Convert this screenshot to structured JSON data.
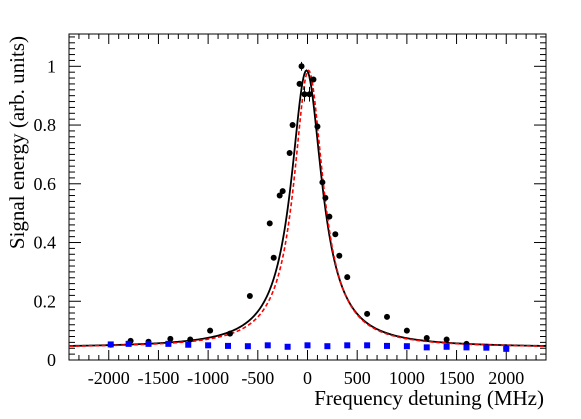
{
  "chart_data": {
    "type": "scatter",
    "title": "",
    "xlabel": "Frequency detuning (MHz)",
    "ylabel": "Signal energy (arb. units)",
    "xlim": [
      -2400,
      2400
    ],
    "ylim": [
      0,
      1.11
    ],
    "x_ticks": [
      -2000,
      -1500,
      -1000,
      -500,
      0,
      500,
      1000,
      1500,
      2000
    ],
    "y_ticks": [
      0,
      0.2,
      0.4,
      0.6,
      0.8,
      1
    ],
    "grid": false,
    "legend": "none",
    "series": [
      {
        "style": "black-points-with-error-bars",
        "color": "#000000",
        "points": [
          {
            "x": -1980,
            "y": 0.052
          },
          {
            "x": -1780,
            "y": 0.065
          },
          {
            "x": -1600,
            "y": 0.062
          },
          {
            "x": -1380,
            "y": 0.072
          },
          {
            "x": -1180,
            "y": 0.07
          },
          {
            "x": -980,
            "y": 0.1
          },
          {
            "x": -780,
            "y": 0.09
          },
          {
            "x": -580,
            "y": 0.218
          },
          {
            "x": -380,
            "y": 0.465
          },
          {
            "x": -340,
            "y": 0.348
          },
          {
            "x": -280,
            "y": 0.56
          },
          {
            "x": -250,
            "y": 0.575
          },
          {
            "x": -180,
            "y": 0.705
          },
          {
            "x": -150,
            "y": 0.8
          },
          {
            "x": -80,
            "y": 0.94
          },
          {
            "x": -60,
            "y": 1.0,
            "err": 0.015
          },
          {
            "x": -30,
            "y": 0.905,
            "err": 0.025
          },
          {
            "x": 20,
            "y": 0.905,
            "err": 0.025
          },
          {
            "x": 60,
            "y": 0.955
          },
          {
            "x": 100,
            "y": 0.795
          },
          {
            "x": 150,
            "y": 0.605
          },
          {
            "x": 180,
            "y": 0.552
          },
          {
            "x": 220,
            "y": 0.488
          },
          {
            "x": 280,
            "y": 0.428
          },
          {
            "x": 320,
            "y": 0.355
          },
          {
            "x": 400,
            "y": 0.282
          },
          {
            "x": 600,
            "y": 0.157
          },
          {
            "x": 800,
            "y": 0.147
          },
          {
            "x": 1000,
            "y": 0.1
          },
          {
            "x": 1200,
            "y": 0.075
          },
          {
            "x": 1400,
            "y": 0.07
          },
          {
            "x": 1600,
            "y": 0.055
          },
          {
            "x": 1800,
            "y": 0.045
          },
          {
            "x": 2000,
            "y": 0.04
          }
        ]
      },
      {
        "style": "blue-squares",
        "color": "#0000ff",
        "points": [
          {
            "x": -1980,
            "y": 0.053
          },
          {
            "x": -1800,
            "y": 0.055
          },
          {
            "x": -1600,
            "y": 0.055
          },
          {
            "x": -1400,
            "y": 0.055
          },
          {
            "x": -1200,
            "y": 0.052
          },
          {
            "x": -1000,
            "y": 0.05
          },
          {
            "x": -800,
            "y": 0.048
          },
          {
            "x": -600,
            "y": 0.047
          },
          {
            "x": -400,
            "y": 0.05
          },
          {
            "x": -200,
            "y": 0.045
          },
          {
            "x": 0,
            "y": 0.05
          },
          {
            "x": 200,
            "y": 0.047
          },
          {
            "x": 400,
            "y": 0.05
          },
          {
            "x": 600,
            "y": 0.05
          },
          {
            "x": 800,
            "y": 0.048
          },
          {
            "x": 1000,
            "y": 0.047
          },
          {
            "x": 1200,
            "y": 0.043
          },
          {
            "x": 1400,
            "y": 0.045
          },
          {
            "x": 1600,
            "y": 0.043
          },
          {
            "x": 1800,
            "y": 0.042
          },
          {
            "x": 2000,
            "y": 0.038
          }
        ]
      },
      {
        "style": "solid-fit-curve",
        "color": "#000000",
        "lorentzian": {
          "center": -10,
          "hwhm": 190,
          "amplitude": 0.944,
          "baseline": 0.042
        }
      },
      {
        "style": "dashed-fit-curve",
        "color": "#ff0000",
        "lorentzian": {
          "center": 10,
          "hwhm": 180,
          "amplitude": 0.944,
          "baseline": 0.042
        }
      }
    ]
  }
}
